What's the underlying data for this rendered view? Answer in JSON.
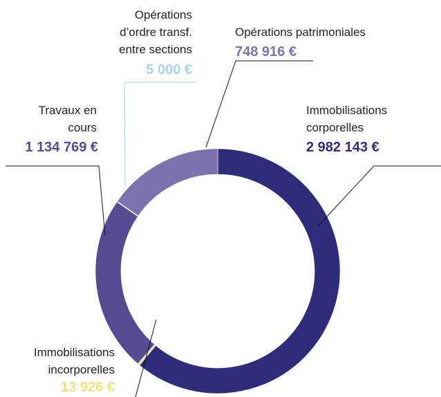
{
  "chart_data": {
    "type": "donut",
    "categories": [
      "Immobilisations corporelles",
      "Immobilisations incorporelles",
      "Travaux en cours",
      "Opérations d’ordre transf. entre sections",
      "Opérations patrimoniales"
    ],
    "values": [
      2982143,
      13926,
      1134769,
      5000,
      748916
    ],
    "value_labels": [
      "2 982 143 €",
      "13 926 €",
      "1 134 769 €",
      "5 000 €",
      "748 916 €"
    ],
    "colors": [
      "#2e2d7b",
      "#f3e27c",
      "#544b92",
      "#a8d3ee",
      "#7b72ae"
    ]
  }
}
